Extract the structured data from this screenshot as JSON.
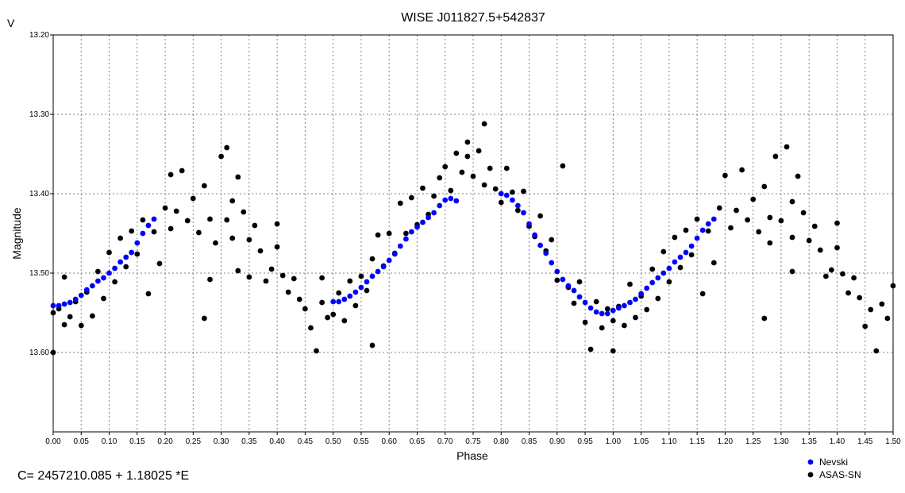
{
  "chart_data": {
    "type": "scatter",
    "title": "WISE J011827.5+542837",
    "corner_label": "V",
    "xlabel": "Phase",
    "ylabel": "Magnitude",
    "xlim": [
      0.0,
      1.5
    ],
    "ylim": [
      13.2,
      13.7
    ],
    "y_inverted": true,
    "grid": true,
    "legend_position": "bottom-right",
    "ephemeris": "C= 2457210.085 + 1.18025 *E",
    "x_ticks": [
      "0.00",
      "0.05",
      "0.10",
      "0.15",
      "0.20",
      "0.25",
      "0.30",
      "0.35",
      "0.40",
      "0.45",
      "0.50",
      "0.55",
      "0.60",
      "0.65",
      "0.70",
      "0.75",
      "0.80",
      "0.85",
      "0.90",
      "0.95",
      "1.00",
      "1.05",
      "1.10",
      "1.15",
      "1.20",
      "1.25",
      "1.30",
      "1.35",
      "1.40",
      "1.45",
      "1.50"
    ],
    "y_ticks": [
      "13.20",
      "13.30",
      "13.40",
      "13.50",
      "13.60"
    ],
    "series": [
      {
        "name": "Nevski",
        "color": "#0000ff",
        "points": [
          [
            0.0,
            13.541
          ],
          [
            0.01,
            13.541
          ],
          [
            0.02,
            13.539
          ],
          [
            0.03,
            13.537
          ],
          [
            0.04,
            13.533
          ],
          [
            0.05,
            13.528
          ],
          [
            0.06,
            13.521
          ],
          [
            0.07,
            13.516
          ],
          [
            0.08,
            13.51
          ],
          [
            0.09,
            13.506
          ],
          [
            0.1,
            13.5
          ],
          [
            0.11,
            13.494
          ],
          [
            0.12,
            13.486
          ],
          [
            0.13,
            13.48
          ],
          [
            0.14,
            13.474
          ],
          [
            0.15,
            13.462
          ],
          [
            0.16,
            13.45
          ],
          [
            0.17,
            13.44
          ],
          [
            0.18,
            13.432
          ],
          [
            0.5,
            13.536
          ],
          [
            0.51,
            13.536
          ],
          [
            0.52,
            13.533
          ],
          [
            0.53,
            13.529
          ],
          [
            0.54,
            13.524
          ],
          [
            0.55,
            13.518
          ],
          [
            0.56,
            13.511
          ],
          [
            0.57,
            13.504
          ],
          [
            0.58,
            13.498
          ],
          [
            0.59,
            13.492
          ],
          [
            0.6,
            13.484
          ],
          [
            0.61,
            13.476
          ],
          [
            0.62,
            13.466
          ],
          [
            0.63,
            13.457
          ],
          [
            0.64,
            13.448
          ],
          [
            0.65,
            13.442
          ],
          [
            0.66,
            13.436
          ],
          [
            0.67,
            13.43
          ],
          [
            0.68,
            13.424
          ],
          [
            0.69,
            13.415
          ],
          [
            0.7,
            13.408
          ],
          [
            0.71,
            13.406
          ],
          [
            0.72,
            13.409
          ],
          [
            0.8,
            13.4
          ],
          [
            0.81,
            13.402
          ],
          [
            0.82,
            13.408
          ],
          [
            0.83,
            13.415
          ],
          [
            0.84,
            13.424
          ],
          [
            0.85,
            13.438
          ],
          [
            0.86,
            13.452
          ],
          [
            0.87,
            13.465
          ],
          [
            0.88,
            13.475
          ],
          [
            0.89,
            13.487
          ],
          [
            0.9,
            13.498
          ],
          [
            0.91,
            13.508
          ],
          [
            0.92,
            13.516
          ],
          [
            0.93,
            13.522
          ],
          [
            0.94,
            13.53
          ],
          [
            0.95,
            13.537
          ],
          [
            0.96,
            13.544
          ],
          [
            0.97,
            13.549
          ],
          [
            0.98,
            13.551
          ],
          [
            0.99,
            13.551
          ],
          [
            1.0,
            13.547
          ],
          [
            1.01,
            13.544
          ],
          [
            1.02,
            13.541
          ],
          [
            1.03,
            13.537
          ],
          [
            1.04,
            13.533
          ],
          [
            1.05,
            13.526
          ],
          [
            1.06,
            13.519
          ],
          [
            1.07,
            13.512
          ],
          [
            1.08,
            13.506
          ],
          [
            1.09,
            13.5
          ],
          [
            1.1,
            13.494
          ],
          [
            1.11,
            13.486
          ],
          [
            1.12,
            13.48
          ],
          [
            1.13,
            13.474
          ],
          [
            1.14,
            13.466
          ],
          [
            1.15,
            13.456
          ],
          [
            1.16,
            13.446
          ],
          [
            1.17,
            13.438
          ],
          [
            1.18,
            13.432
          ]
        ]
      },
      {
        "name": "ASAS-SN",
        "color": "#000000",
        "points": [
          [
            0.0,
            13.6
          ],
          [
            0.0,
            13.55
          ],
          [
            0.01,
            13.545
          ],
          [
            0.02,
            13.505
          ],
          [
            0.02,
            13.565
          ],
          [
            0.03,
            13.555
          ],
          [
            0.04,
            13.536
          ],
          [
            0.05,
            13.566
          ],
          [
            0.06,
            13.524
          ],
          [
            0.07,
            13.554
          ],
          [
            0.08,
            13.498
          ],
          [
            0.09,
            13.532
          ],
          [
            0.1,
            13.474
          ],
          [
            0.11,
            13.511
          ],
          [
            0.12,
            13.456
          ],
          [
            0.13,
            13.492
          ],
          [
            0.14,
            13.447
          ],
          [
            0.15,
            13.476
          ],
          [
            0.16,
            13.433
          ],
          [
            0.17,
            13.526
          ],
          [
            0.18,
            13.448
          ],
          [
            0.19,
            13.488
          ],
          [
            0.2,
            13.418
          ],
          [
            0.21,
            13.376
          ],
          [
            0.21,
            13.444
          ],
          [
            0.22,
            13.422
          ],
          [
            0.23,
            13.371
          ],
          [
            0.24,
            13.434
          ],
          [
            0.25,
            13.406
          ],
          [
            0.26,
            13.449
          ],
          [
            0.27,
            13.39
          ],
          [
            0.27,
            13.557
          ],
          [
            0.28,
            13.508
          ],
          [
            0.28,
            13.432
          ],
          [
            0.29,
            13.462
          ],
          [
            0.3,
            13.353
          ],
          [
            0.31,
            13.433
          ],
          [
            0.31,
            13.342
          ],
          [
            0.32,
            13.409
          ],
          [
            0.32,
            13.456
          ],
          [
            0.33,
            13.497
          ],
          [
            0.33,
            13.379
          ],
          [
            0.34,
            13.423
          ],
          [
            0.35,
            13.505
          ],
          [
            0.35,
            13.458
          ],
          [
            0.36,
            13.44
          ],
          [
            0.37,
            13.472
          ],
          [
            0.38,
            13.51
          ],
          [
            0.39,
            13.495
          ],
          [
            0.4,
            13.438
          ],
          [
            0.4,
            13.467
          ],
          [
            0.41,
            13.503
          ],
          [
            0.42,
            13.524
          ],
          [
            0.43,
            13.507
          ],
          [
            0.44,
            13.533
          ],
          [
            0.45,
            13.545
          ],
          [
            0.46,
            13.569
          ],
          [
            0.47,
            13.598
          ],
          [
            0.48,
            13.537
          ],
          [
            0.48,
            13.506
          ],
          [
            0.49,
            13.556
          ],
          [
            0.5,
            13.552
          ],
          [
            0.51,
            13.525
          ],
          [
            0.52,
            13.56
          ],
          [
            0.53,
            13.51
          ],
          [
            0.54,
            13.541
          ],
          [
            0.55,
            13.504
          ],
          [
            0.56,
            13.522
          ],
          [
            0.57,
            13.591
          ],
          [
            0.57,
            13.482
          ],
          [
            0.58,
            13.452
          ],
          [
            0.59,
            13.491
          ],
          [
            0.6,
            13.45
          ],
          [
            0.61,
            13.475
          ],
          [
            0.62,
            13.412
          ],
          [
            0.63,
            13.45
          ],
          [
            0.64,
            13.405
          ],
          [
            0.65,
            13.439
          ],
          [
            0.66,
            13.393
          ],
          [
            0.67,
            13.426
          ],
          [
            0.68,
            13.403
          ],
          [
            0.69,
            13.38
          ],
          [
            0.7,
            13.366
          ],
          [
            0.71,
            13.396
          ],
          [
            0.72,
            13.349
          ],
          [
            0.73,
            13.373
          ],
          [
            0.74,
            13.335
          ],
          [
            0.74,
            13.353
          ],
          [
            0.75,
            13.378
          ],
          [
            0.76,
            13.346
          ],
          [
            0.77,
            13.389
          ],
          [
            0.77,
            13.312
          ],
          [
            0.78,
            13.368
          ],
          [
            0.79,
            13.394
          ],
          [
            0.8,
            13.411
          ],
          [
            0.81,
            13.368
          ],
          [
            0.82,
            13.398
          ],
          [
            0.83,
            13.421
          ],
          [
            0.84,
            13.397
          ],
          [
            0.85,
            13.441
          ],
          [
            0.86,
            13.454
          ],
          [
            0.87,
            13.428
          ],
          [
            0.88,
            13.472
          ],
          [
            0.89,
            13.458
          ],
          [
            0.9,
            13.509
          ],
          [
            0.91,
            13.365
          ],
          [
            0.92,
            13.518
          ],
          [
            0.93,
            13.538
          ],
          [
            0.94,
            13.511
          ],
          [
            0.95,
            13.562
          ],
          [
            0.96,
            13.596
          ],
          [
            0.97,
            13.536
          ],
          [
            0.98,
            13.569
          ],
          [
            0.99,
            13.545
          ],
          [
            1.0,
            13.598
          ],
          [
            1.0,
            13.56
          ],
          [
            1.01,
            13.542
          ],
          [
            1.02,
            13.566
          ],
          [
            1.03,
            13.514
          ],
          [
            1.04,
            13.556
          ],
          [
            1.05,
            13.529
          ],
          [
            1.06,
            13.546
          ],
          [
            1.07,
            13.495
          ],
          [
            1.08,
            13.532
          ],
          [
            1.09,
            13.473
          ],
          [
            1.1,
            13.511
          ],
          [
            1.11,
            13.455
          ],
          [
            1.12,
            13.493
          ],
          [
            1.13,
            13.446
          ],
          [
            1.14,
            13.477
          ],
          [
            1.15,
            13.432
          ],
          [
            1.16,
            13.526
          ],
          [
            1.17,
            13.447
          ],
          [
            1.18,
            13.487
          ],
          [
            1.19,
            13.418
          ],
          [
            1.2,
            13.377
          ],
          [
            1.21,
            13.443
          ],
          [
            1.22,
            13.421
          ],
          [
            1.23,
            13.37
          ],
          [
            1.24,
            13.433
          ],
          [
            1.25,
            13.407
          ],
          [
            1.26,
            13.448
          ],
          [
            1.27,
            13.391
          ],
          [
            1.27,
            13.557
          ],
          [
            1.28,
            13.43
          ],
          [
            1.28,
            13.462
          ],
          [
            1.29,
            13.353
          ],
          [
            1.3,
            13.434
          ],
          [
            1.31,
            13.341
          ],
          [
            1.32,
            13.41
          ],
          [
            1.32,
            13.455
          ],
          [
            1.32,
            13.498
          ],
          [
            1.33,
            13.378
          ],
          [
            1.34,
            13.424
          ],
          [
            1.35,
            13.459
          ],
          [
            1.36,
            13.441
          ],
          [
            1.37,
            13.471
          ],
          [
            1.38,
            13.504
          ],
          [
            1.39,
            13.496
          ],
          [
            1.4,
            13.437
          ],
          [
            1.4,
            13.468
          ],
          [
            1.41,
            13.501
          ],
          [
            1.42,
            13.525
          ],
          [
            1.43,
            13.506
          ],
          [
            1.44,
            13.531
          ],
          [
            1.45,
            13.567
          ],
          [
            1.46,
            13.546
          ],
          [
            1.47,
            13.598
          ],
          [
            1.48,
            13.539
          ],
          [
            1.49,
            13.557
          ],
          [
            1.5,
            13.516
          ]
        ]
      }
    ]
  }
}
